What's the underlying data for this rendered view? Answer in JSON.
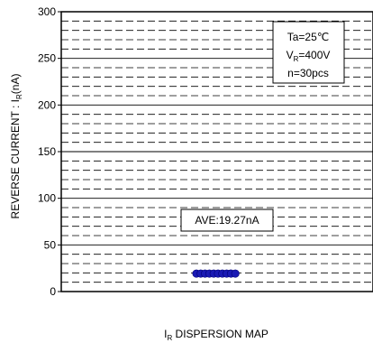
{
  "chart_data": {
    "type": "scatter",
    "title": "",
    "xlabel": "I_R DISPERSION MAP",
    "ylabel": "REVERSE CURRENT : I_R(nA)",
    "ylim": [
      0,
      300
    ],
    "yticks": [
      "0",
      "50",
      "100",
      "150",
      "200",
      "250",
      "300"
    ],
    "grid": {
      "major_every": 50,
      "minor_dashed_every": 10
    },
    "series": [
      {
        "values": [
          19.27,
          19.27,
          19.27,
          19.27,
          19.27,
          19.27,
          19.27,
          19.27,
          19.27,
          19.27
        ],
        "color": "#1a1ab4"
      }
    ],
    "conditions": {
      "line1": "Ta=25℃",
      "line2_prefix": "V",
      "line2_sub": "R",
      "line2_suffix": "=400V",
      "line3": "n=30pcs"
    },
    "average_label": "AVE:19.27nA"
  }
}
